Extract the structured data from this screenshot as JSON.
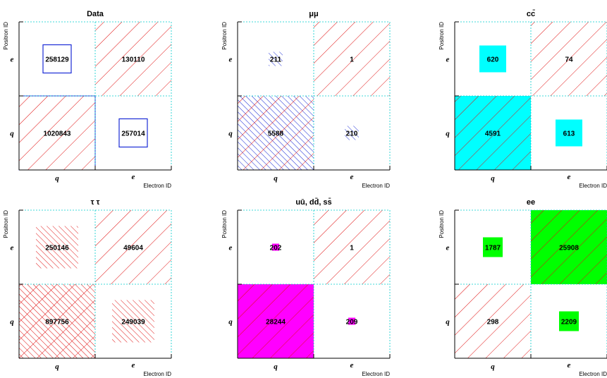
{
  "colors": {
    "data_frame": "#1a2bd6",
    "mumu_hatch": "#1a2bd6",
    "cc": "#00ffff",
    "tautau_hatch": "#e01010",
    "light": "#ff00ff",
    "ee": "#00ff00",
    "diag_hatch": "#e01010",
    "grid": "#00cccc",
    "axis": "#000000"
  },
  "chart_data": [
    {
      "type": "heatmap",
      "title": "Data",
      "xlabel": "Electron ID",
      "ylabel": "Positron ID",
      "x_ticks": [
        "q",
        "e"
      ],
      "y_ticks": [
        "q",
        "e"
      ],
      "cells": [
        {
          "x": "q",
          "y": "e",
          "value": 258129
        },
        {
          "x": "e",
          "y": "e",
          "value": 130110
        },
        {
          "x": "q",
          "y": "q",
          "value": 1020843
        },
        {
          "x": "e",
          "y": "q",
          "value": 257014
        }
      ]
    },
    {
      "type": "heatmap",
      "title": "μμ",
      "xlabel": "Electron ID",
      "ylabel": "Positron ID",
      "x_ticks": [
        "q",
        "e"
      ],
      "y_ticks": [
        "q",
        "e"
      ],
      "cells": [
        {
          "x": "q",
          "y": "e",
          "value": 211
        },
        {
          "x": "e",
          "y": "e",
          "value": 1
        },
        {
          "x": "q",
          "y": "q",
          "value": 5588
        },
        {
          "x": "e",
          "y": "q",
          "value": 210
        }
      ]
    },
    {
      "type": "heatmap",
      "title": "cc̄",
      "xlabel": "Electron ID",
      "ylabel": "Positron ID",
      "x_ticks": [
        "q",
        "e"
      ],
      "y_ticks": [
        "q",
        "e"
      ],
      "cells": [
        {
          "x": "q",
          "y": "e",
          "value": 620
        },
        {
          "x": "e",
          "y": "e",
          "value": 74
        },
        {
          "x": "q",
          "y": "q",
          "value": 4591
        },
        {
          "x": "e",
          "y": "q",
          "value": 613
        }
      ]
    },
    {
      "type": "heatmap",
      "title": "τ τ",
      "xlabel": "Electron ID",
      "ylabel": "Positron ID",
      "x_ticks": [
        "q",
        "e"
      ],
      "y_ticks": [
        "q",
        "e"
      ],
      "cells": [
        {
          "x": "q",
          "y": "e",
          "value": 250146
        },
        {
          "x": "e",
          "y": "e",
          "value": 49604
        },
        {
          "x": "q",
          "y": "q",
          "value": 897756
        },
        {
          "x": "e",
          "y": "q",
          "value": 249039
        }
      ]
    },
    {
      "type": "heatmap",
      "title": "uū, dd̄, ss̄",
      "xlabel": "Electron ID",
      "ylabel": "Positron ID",
      "x_ticks": [
        "q",
        "e"
      ],
      "y_ticks": [
        "q",
        "e"
      ],
      "cells": [
        {
          "x": "q",
          "y": "e",
          "value": 202
        },
        {
          "x": "e",
          "y": "e",
          "value": 1
        },
        {
          "x": "q",
          "y": "q",
          "value": 28244
        },
        {
          "x": "e",
          "y": "q",
          "value": 209
        }
      ]
    },
    {
      "type": "heatmap",
      "title": "ee",
      "xlabel": "Electron ID",
      "ylabel": "Positron ID",
      "x_ticks": [
        "q",
        "e"
      ],
      "y_ticks": [
        "q",
        "e"
      ],
      "cells": [
        {
          "x": "q",
          "y": "e",
          "value": 1787
        },
        {
          "x": "e",
          "y": "e",
          "value": 25908
        },
        {
          "x": "q",
          "y": "q",
          "value": 298
        },
        {
          "x": "e",
          "y": "q",
          "value": 2209
        }
      ]
    }
  ]
}
